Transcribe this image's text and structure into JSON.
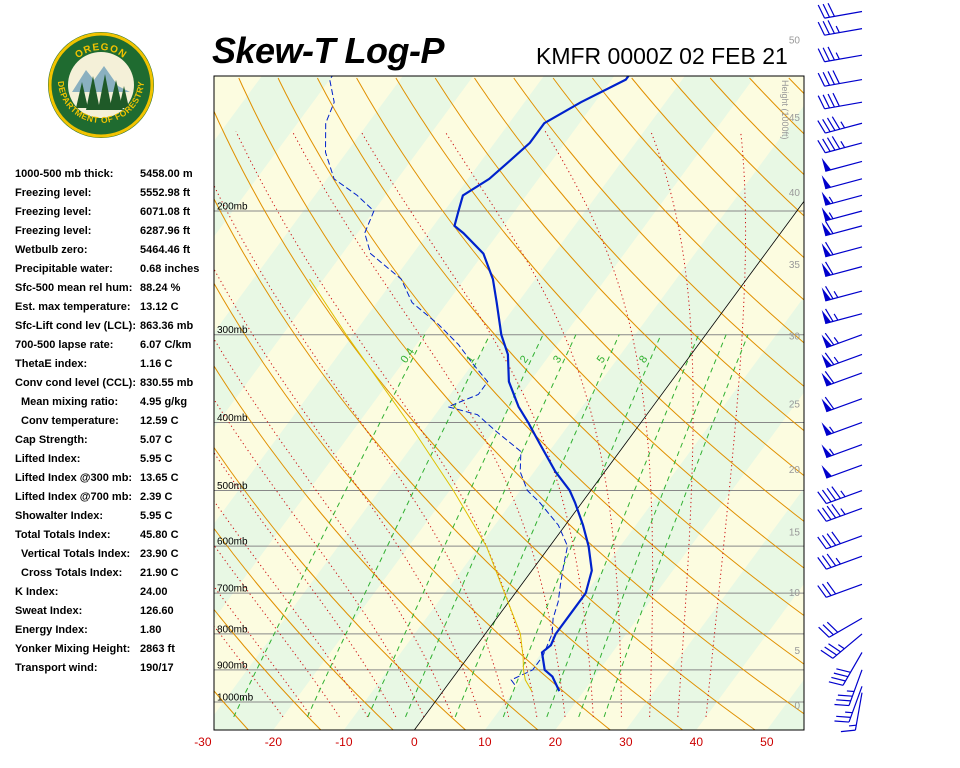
{
  "header": {
    "title": "Skew-T Log-P",
    "station_time": "KMFR 0000Z 02 FEB 21"
  },
  "logo": {
    "text_top": "OREGON",
    "text_bottom": "DEPARTMENT OF FORESTRY"
  },
  "indices": [
    {
      "label": "1000-500 mb thick:",
      "value": "5458.00 m"
    },
    {
      "label": "Freezing level:",
      "value": "5552.98 ft"
    },
    {
      "label": "Freezing level:",
      "value": "6071.08 ft"
    },
    {
      "label": "Freezing level:",
      "value": "6287.96 ft"
    },
    {
      "label": "Wetbulb zero:",
      "value": "5464.46 ft"
    },
    {
      "label": "Precipitable water:",
      "value": "0.68 inches"
    },
    {
      "label": "Sfc-500 mean rel hum:",
      "value": "88.24 %"
    },
    {
      "label": "Est. max temperature:",
      "value": "13.12 C"
    },
    {
      "label": "Sfc-Lift cond lev (LCL):",
      "value": "863.36 mb"
    },
    {
      "label": "700-500 lapse rate:",
      "value": "6.07 C/km"
    },
    {
      "label": "ThetaE index:",
      "value": "1.16 C"
    },
    {
      "label": "Conv cond level (CCL):",
      "value": "830.55 mb"
    },
    {
      "label": "Mean mixing ratio:",
      "value": "4.95 g/kg",
      "indent": true
    },
    {
      "label": "Conv temperature:",
      "value": "12.59 C",
      "indent": true
    },
    {
      "label": "Cap Strength:",
      "value": "5.07 C"
    },
    {
      "label": "Lifted Index:",
      "value": "5.95 C"
    },
    {
      "label": "Lifted Index @300 mb:",
      "value": "13.65 C"
    },
    {
      "label": "Lifted Index @700 mb:",
      "value": "2.39 C"
    },
    {
      "label": "Showalter Index:",
      "value": "5.95 C"
    },
    {
      "label": "Total Totals Index:",
      "value": "45.80 C"
    },
    {
      "label": "Vertical Totals Index:",
      "value": "23.90 C",
      "indent": true
    },
    {
      "label": "Cross Totals Index:",
      "value": "21.90 C",
      "indent": true
    },
    {
      "label": "K Index:",
      "value": "24.00"
    },
    {
      "label": "Sweat Index:",
      "value": "126.60"
    },
    {
      "label": "Energy Index:",
      "value": "1.80"
    },
    {
      "label": "Yonker Mixing Height:",
      "value": "2863 ft"
    },
    {
      "label": "Transport wind:",
      "value": "190/17"
    }
  ],
  "chart_data": {
    "type": "line",
    "xlabel": "",
    "ylabel": "",
    "x_ticks": [
      -30,
      -20,
      -10,
      0,
      10,
      20,
      30,
      40,
      50
    ],
    "xlim": [
      -31,
      53
    ],
    "pressure_levels": [
      {
        "p": 200,
        "label": "200mb"
      },
      {
        "p": 300,
        "label": "300mb"
      },
      {
        "p": 400,
        "label": "400mb"
      },
      {
        "p": 500,
        "label": "500mb"
      },
      {
        "p": 600,
        "label": "600mb"
      },
      {
        "p": 700,
        "label": "700mb"
      },
      {
        "p": 800,
        "label": "800mb"
      },
      {
        "p": 900,
        "label": "900mb"
      },
      {
        "p": 1000,
        "label": "1000mb"
      }
    ],
    "height_axis_label": "Height (1000ft)",
    "height_ticks": [
      {
        "label": "0",
        "p": 1010
      },
      {
        "label": "5",
        "p": 843
      },
      {
        "label": "10",
        "p": 697
      },
      {
        "label": "15",
        "p": 572
      },
      {
        "label": "20",
        "p": 466
      },
      {
        "label": "25",
        "p": 376
      },
      {
        "label": "30",
        "p": 301
      },
      {
        "label": "35",
        "p": 238
      },
      {
        "label": "40",
        "p": 188
      },
      {
        "label": "45",
        "p": 147
      },
      {
        "label": "50",
        "p": 114
      }
    ],
    "mixing_ratio_labels": [
      "0.4",
      "1",
      "2",
      "3",
      "5",
      "8"
    ],
    "series": [
      {
        "id": "temperature",
        "color": "#0022cc",
        "points": [
          [
            965,
            16.5
          ],
          [
            920,
            14
          ],
          [
            900,
            12.2
          ],
          [
            850,
            10
          ],
          [
            830,
            10.5
          ],
          [
            800,
            10
          ],
          [
            750,
            10
          ],
          [
            700,
            10
          ],
          [
            650,
            8.5
          ],
          [
            600,
            5.5
          ],
          [
            560,
            2.5
          ],
          [
            520,
            -1
          ],
          [
            500,
            -3
          ],
          [
            470,
            -7
          ],
          [
            430,
            -12
          ],
          [
            400,
            -16
          ],
          [
            380,
            -19
          ],
          [
            350,
            -23
          ],
          [
            320,
            -26
          ],
          [
            300,
            -29
          ],
          [
            270,
            -33
          ],
          [
            250,
            -36
          ],
          [
            230,
            -40
          ],
          [
            215,
            -45
          ],
          [
            210,
            -47
          ],
          [
            200,
            -48
          ],
          [
            190,
            -49
          ],
          [
            180,
            -47
          ],
          [
            170,
            -46
          ],
          [
            160,
            -45
          ],
          [
            150,
            -45
          ],
          [
            140,
            -42
          ],
          [
            130,
            -38
          ],
          [
            125,
            -38
          ],
          [
            120,
            -41
          ],
          [
            118,
            -45
          ],
          [
            114,
            -46
          ],
          [
            110,
            -46
          ],
          [
            105,
            -44
          ],
          [
            100,
            -44
          ]
        ]
      },
      {
        "id": "dewpoint",
        "color": "#0022cc",
        "dashed": true,
        "points": [
          [
            945,
            9.5
          ],
          [
            930,
            8.5
          ],
          [
            900,
            10.5
          ],
          [
            860,
            10.5
          ],
          [
            830,
            10
          ],
          [
            800,
            9.5
          ],
          [
            760,
            8
          ],
          [
            720,
            7
          ],
          [
            680,
            5.5
          ],
          [
            640,
            4
          ],
          [
            600,
            2.5
          ],
          [
            560,
            -1
          ],
          [
            520,
            -6
          ],
          [
            500,
            -9
          ],
          [
            470,
            -12
          ],
          [
            440,
            -14
          ],
          [
            410,
            -20
          ],
          [
            390,
            -24
          ],
          [
            380,
            -29
          ],
          [
            365,
            -26
          ],
          [
            350,
            -26
          ],
          [
            330,
            -30
          ],
          [
            310,
            -34
          ],
          [
            290,
            -39
          ],
          [
            270,
            -45
          ],
          [
            250,
            -49
          ],
          [
            230,
            -56
          ],
          [
            215,
            -59
          ],
          [
            200,
            -60
          ],
          [
            190,
            -64
          ],
          [
            180,
            -69
          ],
          [
            165,
            -73
          ],
          [
            150,
            -76
          ],
          [
            140,
            -77
          ],
          [
            130,
            -80
          ],
          [
            125,
            -80
          ],
          [
            118,
            -79
          ],
          [
            110,
            -81
          ],
          [
            100,
            -82
          ]
        ]
      },
      {
        "id": "parcel",
        "color": "#e0c000",
        "points": [
          [
            965,
            12.59
          ],
          [
            930,
            10.5
          ],
          [
            900,
            9.2
          ],
          [
            863,
            7.8
          ],
          [
            800,
            5
          ],
          [
            700,
            -1.5
          ],
          [
            600,
            -9
          ],
          [
            500,
            -19.5
          ],
          [
            400,
            -33
          ],
          [
            300,
            -51
          ],
          [
            250,
            -62
          ]
        ]
      }
    ],
    "wind_barbs": [
      {
        "p": 970,
        "dir": 190,
        "spd": 17
      },
      {
        "p": 950,
        "dir": 200,
        "spd": 25
      },
      {
        "p": 900,
        "dir": 200,
        "spd": 35
      },
      {
        "p": 850,
        "dir": 210,
        "spd": 40
      },
      {
        "p": 800,
        "dir": 230,
        "spd": 35
      },
      {
        "p": 760,
        "dir": 240,
        "spd": 30
      },
      {
        "p": 680,
        "dir": 250,
        "spd": 30
      },
      {
        "p": 620,
        "dir": 250,
        "spd": 35
      },
      {
        "p": 580,
        "dir": 250,
        "spd": 40
      },
      {
        "p": 530,
        "dir": 250,
        "spd": 45
      },
      {
        "p": 500,
        "dir": 250,
        "spd": 45
      },
      {
        "p": 460,
        "dir": 250,
        "spd": 50
      },
      {
        "p": 430,
        "dir": 250,
        "spd": 55
      },
      {
        "p": 400,
        "dir": 250,
        "spd": 55
      },
      {
        "p": 370,
        "dir": 250,
        "spd": 60
      },
      {
        "p": 340,
        "dir": 250,
        "spd": 60
      },
      {
        "p": 320,
        "dir": 250,
        "spd": 65
      },
      {
        "p": 300,
        "dir": 250,
        "spd": 65
      },
      {
        "p": 280,
        "dir": 255,
        "spd": 65
      },
      {
        "p": 260,
        "dir": 255,
        "spd": 65
      },
      {
        "p": 240,
        "dir": 255,
        "spd": 60
      },
      {
        "p": 225,
        "dir": 255,
        "spd": 60
      },
      {
        "p": 210,
        "dir": 255,
        "spd": 60
      },
      {
        "p": 200,
        "dir": 255,
        "spd": 55
      },
      {
        "p": 190,
        "dir": 255,
        "spd": 55
      },
      {
        "p": 180,
        "dir": 255,
        "spd": 50
      },
      {
        "p": 170,
        "dir": 255,
        "spd": 50
      },
      {
        "p": 160,
        "dir": 255,
        "spd": 45
      },
      {
        "p": 150,
        "dir": 255,
        "spd": 45
      },
      {
        "p": 140,
        "dir": 260,
        "spd": 40
      },
      {
        "p": 130,
        "dir": 260,
        "spd": 40
      },
      {
        "p": 120,
        "dir": 260,
        "spd": 35
      },
      {
        "p": 110,
        "dir": 260,
        "spd": 35
      },
      {
        "p": 104,
        "dir": 260,
        "spd": 30
      }
    ]
  },
  "colors": {
    "band_green": "#e8f8e4",
    "band_yellow": "#fcfce0",
    "dry_adiabat": "#e09000",
    "moist_adiabat": "#cc1010",
    "mixing_ratio": "#30b030",
    "isobar": "#888888",
    "temp_label": "#cc0000",
    "height_label": "#999999",
    "wind_barb": "#0000cc"
  }
}
